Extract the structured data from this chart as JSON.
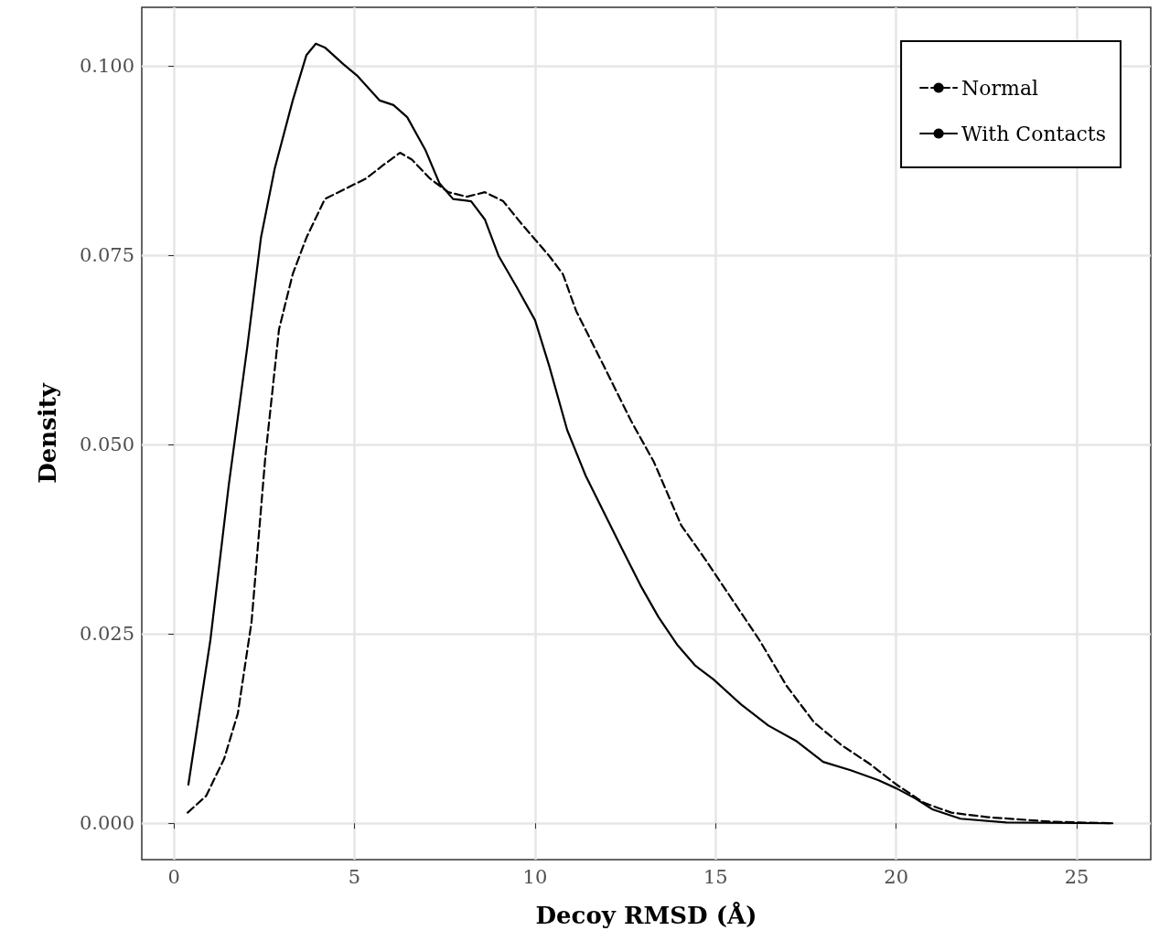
{
  "chart_data": {
    "type": "line",
    "xlabel": "Decoy RMSD (Å)",
    "ylabel": "Density",
    "xlim": [
      -0.89,
      27.05
    ],
    "ylim": [
      -0.0048,
      0.1077
    ],
    "xticks": [
      0,
      5,
      10,
      15,
      20,
      25
    ],
    "yticks": [
      {
        "value": 0,
        "label": "0.000"
      },
      {
        "value": 0.025,
        "label": "0.025"
      },
      {
        "value": 0.05,
        "label": "0.050"
      },
      {
        "value": 0.075,
        "label": "0.075"
      },
      {
        "value": 0.1,
        "label": "0.100"
      }
    ],
    "grid": true,
    "legend": "top right",
    "marker": "none",
    "series": [
      {
        "name": "Normal",
        "color": "#000000",
        "line_style": "dashed",
        "x": [
          0.38,
          0.89,
          1.39,
          1.77,
          2.15,
          2.53,
          2.91,
          3.29,
          3.67,
          4.18,
          4.81,
          5.32,
          5.83,
          6.26,
          6.59,
          7.09,
          7.6,
          8.11,
          8.61,
          9.12,
          9.63,
          10.39,
          10.77,
          11.14,
          11.9,
          12.66,
          13.29,
          14.05,
          14.69,
          15.45,
          16.21,
          16.97,
          17.73,
          18.49,
          19.25,
          20.01,
          20.77,
          21.53,
          22.54,
          24.32,
          25.99
        ],
        "values": [
          0.0014,
          0.0036,
          0.0085,
          0.0145,
          0.0266,
          0.0483,
          0.0652,
          0.0725,
          0.0773,
          0.0824,
          0.0839,
          0.0851,
          0.087,
          0.0885,
          0.0876,
          0.0851,
          0.0833,
          0.0827,
          0.0833,
          0.0821,
          0.0791,
          0.0749,
          0.0725,
          0.0676,
          0.0604,
          0.0531,
          0.0477,
          0.0393,
          0.035,
          0.0296,
          0.0242,
          0.0181,
          0.0133,
          0.0103,
          0.0079,
          0.0051,
          0.0027,
          0.0014,
          0.0008,
          0.0002,
          0.0
        ]
      },
      {
        "name": "With Contacts",
        "color": "#000000",
        "line_style": "solid",
        "x": [
          0.4,
          1.01,
          1.52,
          2.03,
          2.41,
          2.79,
          3.29,
          3.67,
          3.93,
          4.18,
          4.69,
          5.07,
          5.7,
          6.08,
          6.46,
          6.97,
          7.35,
          7.73,
          8.23,
          8.61,
          8.99,
          9.5,
          10.0,
          10.39,
          10.89,
          11.4,
          11.9,
          12.41,
          12.92,
          13.42,
          13.93,
          14.44,
          14.94,
          15.7,
          16.46,
          17.22,
          17.98,
          18.74,
          19.5,
          20.01,
          20.52,
          21.02,
          21.78,
          23.05,
          25.99
        ],
        "values": [
          0.0051,
          0.0242,
          0.0447,
          0.0628,
          0.0773,
          0.0864,
          0.0954,
          0.1014,
          0.1029,
          0.1024,
          0.1002,
          0.0987,
          0.0954,
          0.0948,
          0.0932,
          0.0888,
          0.0845,
          0.0824,
          0.0821,
          0.0797,
          0.0749,
          0.0707,
          0.0664,
          0.0604,
          0.0519,
          0.0459,
          0.0411,
          0.0362,
          0.0314,
          0.0272,
          0.0236,
          0.0208,
          0.019,
          0.0157,
          0.0129,
          0.0109,
          0.0081,
          0.007,
          0.0057,
          0.0046,
          0.0033,
          0.0018,
          0.0006,
          0.0001,
          0.0
        ]
      }
    ]
  }
}
